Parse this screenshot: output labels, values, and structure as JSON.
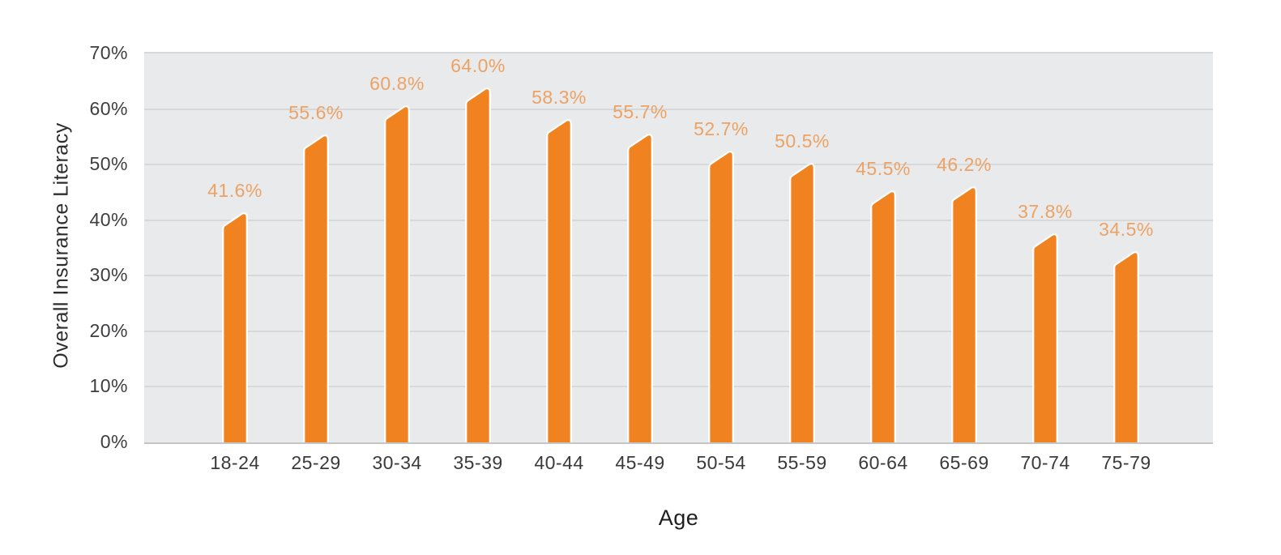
{
  "chart_data": {
    "type": "bar",
    "title": "",
    "xlabel": "Age",
    "ylabel": "Overall Insurance Literacy",
    "categories": [
      "18-24",
      "25-29",
      "30-34",
      "35-39",
      "40-44",
      "45-49",
      "50-54",
      "55-59",
      "60-64",
      "65-69",
      "70-74",
      "75-79"
    ],
    "values": [
      41.6,
      55.6,
      60.8,
      64.0,
      58.3,
      55.7,
      52.7,
      50.5,
      45.5,
      46.2,
      37.8,
      34.5
    ],
    "data_labels": [
      "41.6%",
      "55.6%",
      "60.8%",
      "64.0%",
      "58.3%",
      "55.7%",
      "52.7%",
      "50.5%",
      "45.5%",
      "46.2%",
      "37.8%",
      "34.5%"
    ],
    "ylim": [
      0,
      70
    ],
    "ytick_values": [
      0,
      10,
      20,
      30,
      40,
      50,
      60,
      70
    ],
    "ytick_labels": [
      "0%",
      "10%",
      "20%",
      "30%",
      "40%",
      "50%",
      "60%",
      "70%"
    ],
    "grid": "horizontal",
    "legend": "none",
    "colors": {
      "bar": "#f0831f",
      "bar_outline": "#ffffff",
      "data_label": "#eda265",
      "axis_text": "#3a3a3c",
      "plot_background": "#e9eaeb",
      "gridline": "#d6d8da",
      "baseline": "#c3c5c7",
      "page_background": "#ffffff"
    }
  }
}
